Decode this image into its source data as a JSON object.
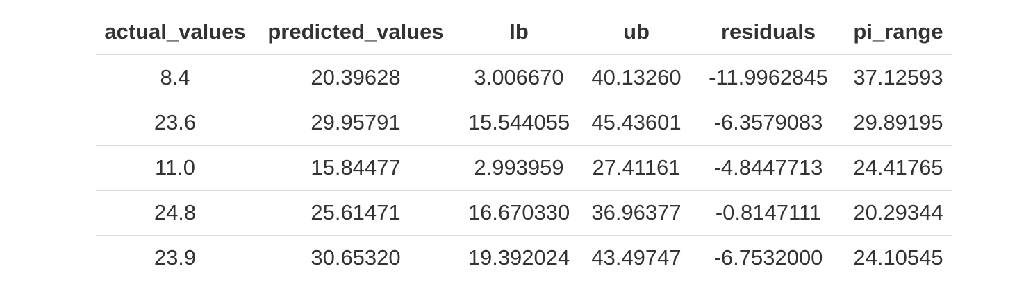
{
  "table": {
    "columns": [
      "actual_values",
      "predicted_values",
      "lb",
      "ub",
      "residuals",
      "pi_range"
    ],
    "rows": [
      [
        "8.4",
        "20.39628",
        "3.006670",
        "40.13260",
        "-11.9962845",
        "37.12593"
      ],
      [
        "23.6",
        "29.95791",
        "15.544055",
        "45.43601",
        "-6.3579083",
        "29.89195"
      ],
      [
        "11.0",
        "15.84477",
        "2.993959",
        "27.41161",
        "-4.8447713",
        "24.41765"
      ],
      [
        "24.8",
        "25.61471",
        "16.670330",
        "36.96377",
        "-0.8147111",
        "20.29344"
      ],
      [
        "23.9",
        "30.65320",
        "19.392024",
        "43.49747",
        "-6.7532000",
        "24.10545"
      ]
    ]
  }
}
